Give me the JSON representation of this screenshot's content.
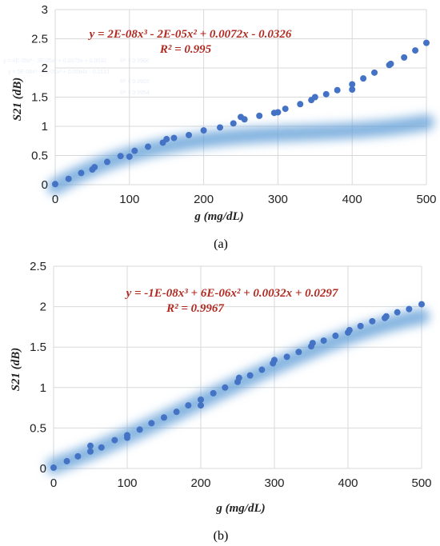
{
  "colors": {
    "marker": "#4472c4",
    "glow": "#5b9bd5",
    "equation": "#b02a22",
    "grid": "#d9d9d9"
  },
  "chart_data": [
    {
      "type": "scatter",
      "panel_label": "(a)",
      "xlabel": "g (mg/dL)",
      "ylabel": "S21 (dB)",
      "xlim": [
        0,
        500
      ],
      "ylim": [
        0,
        3
      ],
      "x_ticks": [
        "0",
        "100",
        "200",
        "300",
        "400",
        "500"
      ],
      "y_ticks": [
        "0",
        "0.5",
        "1",
        "1.5",
        "2",
        "2.5",
        "3"
      ],
      "grid": true,
      "trendline": {
        "type": "polynomial-3",
        "equation": "y = 2E-08x³ - 2E-05x² + 0.0072x - 0.0326",
        "r2": "R² = 0.995",
        "coefficients": [
          2e-08,
          -2e-05,
          0.0072,
          -0.0326
        ]
      },
      "faint_background_text": [
        "y = 4E-08x³ - 3E-05x² + 0.0075x + 0.0032",
        "R² = 0.9966",
        "y = 5E-08x³ - 4E-05x² + 0.0084x - 0.0161",
        "R² = 0.9902",
        "R² = 0.9954"
      ],
      "points": {
        "x": [
          0,
          18,
          35,
          50,
          53,
          70,
          88,
          100,
          107,
          125,
          145,
          150,
          160,
          180,
          200,
          222,
          240,
          250,
          255,
          275,
          295,
          300,
          310,
          330,
          345,
          350,
          365,
          380,
          400,
          400,
          415,
          430,
          450,
          452,
          470,
          485,
          500
        ],
        "y": [
          0.01,
          0.1,
          0.2,
          0.26,
          0.3,
          0.39,
          0.49,
          0.48,
          0.58,
          0.65,
          0.72,
          0.78,
          0.8,
          0.85,
          0.93,
          0.98,
          1.05,
          1.16,
          1.12,
          1.18,
          1.23,
          1.24,
          1.3,
          1.38,
          1.45,
          1.5,
          1.55,
          1.62,
          1.63,
          1.72,
          1.82,
          1.92,
          2.05,
          2.07,
          2.18,
          2.3,
          2.43
        ]
      }
    },
    {
      "type": "scatter",
      "panel_label": "(b)",
      "xlabel": "g (mg/dL)",
      "ylabel": "S21 (dB)",
      "xlim": [
        0,
        500
      ],
      "ylim": [
        0,
        2.5
      ],
      "x_ticks": [
        "0",
        "100",
        "200",
        "300",
        "400",
        "500"
      ],
      "y_ticks": [
        "0",
        "0.5",
        "1",
        "1.5",
        "2",
        "2.5"
      ],
      "grid": true,
      "trendline": {
        "type": "polynomial-3",
        "equation": "y = -1E-08x³ + 6E-06x² + 0.0032x + 0.0297",
        "r2": "R² = 0.9967",
        "coefficients": [
          -1e-08,
          6e-06,
          0.0032,
          0.0297
        ]
      },
      "points": {
        "x": [
          0,
          18,
          33,
          50,
          50,
          65,
          83,
          100,
          100,
          117,
          133,
          150,
          167,
          183,
          200,
          200,
          217,
          233,
          250,
          252,
          267,
          283,
          298,
          300,
          317,
          333,
          350,
          352,
          367,
          383,
          400,
          402,
          417,
          433,
          450,
          452,
          467,
          483,
          500
        ],
        "y": [
          0.01,
          0.09,
          0.15,
          0.21,
          0.28,
          0.26,
          0.35,
          0.38,
          0.41,
          0.48,
          0.56,
          0.63,
          0.7,
          0.78,
          0.78,
          0.85,
          0.93,
          1.0,
          1.07,
          1.12,
          1.15,
          1.22,
          1.3,
          1.34,
          1.38,
          1.44,
          1.51,
          1.55,
          1.58,
          1.64,
          1.68,
          1.71,
          1.76,
          1.82,
          1.86,
          1.88,
          1.93,
          1.97,
          2.03
        ]
      }
    }
  ]
}
